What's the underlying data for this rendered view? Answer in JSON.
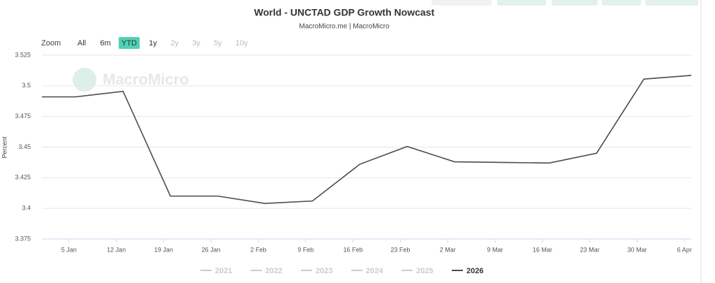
{
  "chart_data": {
    "type": "line",
    "title": "World - UNCTAD GDP Growth Nowcast",
    "subtitle": "MacroMicro.me | MacroMicro",
    "watermark": "MacroMicro",
    "y_label": "Percent",
    "range_selector": {
      "label": "Zoom",
      "selected": 2,
      "buttons": [
        {
          "text": "All",
          "enabled": true
        },
        {
          "text": "6m",
          "enabled": true
        },
        {
          "text": "YTD",
          "enabled": true
        },
        {
          "text": "1y",
          "enabled": true
        },
        {
          "text": "2y",
          "enabled": false
        },
        {
          "text": "3y",
          "enabled": false
        },
        {
          "text": "5y",
          "enabled": false
        },
        {
          "text": "10y",
          "enabled": false
        }
      ]
    },
    "x": [
      1,
      6,
      13,
      20,
      27,
      34,
      41,
      48,
      55,
      62,
      69,
      76,
      83,
      90,
      97
    ],
    "xlim": [
      1,
      97
    ],
    "xticks": [
      {
        "value": 5,
        "label": "5 Jan"
      },
      {
        "value": 12,
        "label": "12 Jan"
      },
      {
        "value": 19,
        "label": "19 Jan"
      },
      {
        "value": 26,
        "label": "26 Jan"
      },
      {
        "value": 33,
        "label": "2 Feb"
      },
      {
        "value": 40,
        "label": "9 Feb"
      },
      {
        "value": 47,
        "label": "16 Feb"
      },
      {
        "value": 54,
        "label": "23 Feb"
      },
      {
        "value": 61,
        "label": "2 Mar"
      },
      {
        "value": 68,
        "label": "9 Mar"
      },
      {
        "value": 75,
        "label": "16 Mar"
      },
      {
        "value": 82,
        "label": "23 Mar"
      },
      {
        "value": 89,
        "label": "30 Mar"
      },
      {
        "value": 96,
        "label": "6 Apr"
      }
    ],
    "ylim": [
      3.375,
      3.525
    ],
    "yticks": [
      3.375,
      3.4,
      3.425,
      3.45,
      3.475,
      3.5,
      3.525
    ],
    "grid": true,
    "series": [
      {
        "name": "2026",
        "color": "#4a4a52",
        "values": [
          3.491,
          3.491,
          3.4955,
          3.41,
          3.41,
          3.404,
          3.406,
          3.436,
          3.4505,
          3.438,
          3.4375,
          3.437,
          3.445,
          3.5055,
          3.5085
        ]
      }
    ],
    "legend": [
      {
        "name": "2021",
        "visible": false
      },
      {
        "name": "2022",
        "visible": false
      },
      {
        "name": "2023",
        "visible": false
      },
      {
        "name": "2024",
        "visible": false
      },
      {
        "name": "2025",
        "visible": false
      },
      {
        "name": "2026",
        "visible": true
      }
    ]
  }
}
